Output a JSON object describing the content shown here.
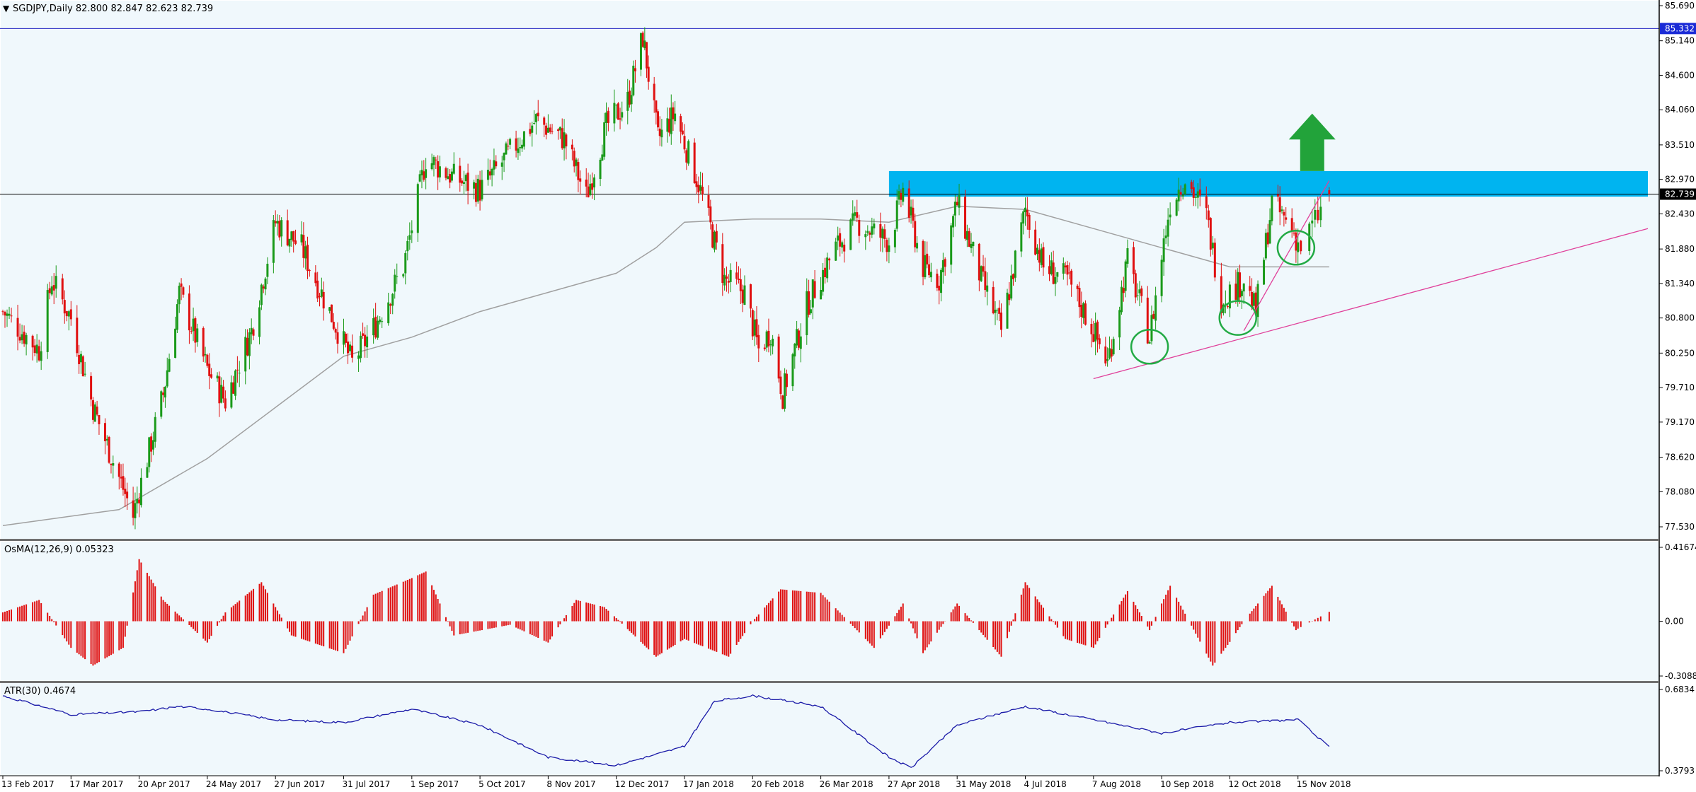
{
  "colors": {
    "background": "#f0f8fc",
    "bull_candle": "#1a9a1a",
    "bear_candle": "#e01010",
    "osma_bar": "#e01010",
    "atr_line": "#1a1aa8",
    "ma_line": "#a0a0a0",
    "resistance_line": "#2020c0",
    "price_line": "#000000",
    "zone": "#00b4f0",
    "arrow": "#22a33a",
    "trendline": "#e0409a",
    "circle": "#22aa44",
    "axis_text": "#000000",
    "tag_blue": "#1a2bd6",
    "tag_black": "#000000"
  },
  "main_panel": {
    "header_arrow": "▼",
    "header": "SGDJPY,Daily  82.800 82.847 82.623 82.739",
    "price_ticks": [
      "85.690",
      "85.140",
      "84.600",
      "84.060",
      "83.510",
      "82.970",
      "82.430",
      "81.880",
      "81.340",
      "80.800",
      "80.250",
      "79.710",
      "79.170",
      "78.620",
      "78.080",
      "77.530"
    ],
    "resistance_tag": "85.332",
    "last_price_tag": "82.739"
  },
  "osma_panel": {
    "label": "OsMA(12,26,9) 0.05323",
    "ticks": [
      "0.41674",
      "0.00",
      "-0.30886"
    ]
  },
  "atr_panel": {
    "label": "ATR(30) 0.4674",
    "ticks": [
      "0.6834",
      "0.3793"
    ]
  },
  "x_labels": [
    "13 Feb 2017",
    "17 Mar 2017",
    "20 Apr 2017",
    "24 May 2017",
    "27 Jun 2017",
    "31 Jul 2017",
    "1 Sep 2017",
    "5 Oct 2017",
    "8 Nov 2017",
    "12 Dec 2017",
    "17 Jan 2018",
    "20 Feb 2018",
    "26 Mar 2018",
    "27 Apr 2018",
    "31 May 2018",
    "4 Jul 2018",
    "7 Aug 2018",
    "10 Sep 2018",
    "12 Oct 2018",
    "15 Nov 2018"
  ],
  "chart_data": [
    {
      "type": "candlestick",
      "symbol": "SGDJPY",
      "timeframe": "Daily",
      "ohlc_last": {
        "open": 82.8,
        "high": 82.847,
        "low": 82.623,
        "close": 82.739
      },
      "ylim": [
        77.45,
        85.75
      ],
      "x_range": [
        "13 Feb 2017",
        "26 Nov 2018"
      ],
      "close_path": [
        {
          "date": "13 Feb 2017",
          "close": 80.9
        },
        {
          "date": "2 Mar 2017",
          "close": 80.3
        },
        {
          "date": "8 Mar 2017",
          "close": 81.4
        },
        {
          "date": "17 Mar 2017",
          "close": 80.8
        },
        {
          "date": "28 Mar 2017",
          "close": 79.4
        },
        {
          "date": "10 Apr 2017",
          "close": 78.3
        },
        {
          "date": "17 Apr 2017",
          "close": 77.7
        },
        {
          "date": "20 Apr 2017",
          "close": 78.1
        },
        {
          "date": "2 May 2017",
          "close": 79.6
        },
        {
          "date": "10 May 2017",
          "close": 81.2
        },
        {
          "date": "24 May 2017",
          "close": 80.0
        },
        {
          "date": "2 Jun 2017",
          "close": 79.5
        },
        {
          "date": "15 Jun 2017",
          "close": 80.6
        },
        {
          "date": "27 Jun 2017",
          "close": 82.3
        },
        {
          "date": "10 Jul 2017",
          "close": 81.9
        },
        {
          "date": "24 Jul 2017",
          "close": 80.9
        },
        {
          "date": "4 Aug 2017",
          "close": 80.1
        },
        {
          "date": "15 Aug 2017",
          "close": 80.7
        },
        {
          "date": "28 Aug 2017",
          "close": 81.6
        },
        {
          "date": "8 Sep 2017",
          "close": 83.3
        },
        {
          "date": "22 Sep 2017",
          "close": 83.0
        },
        {
          "date": "5 Oct 2017",
          "close": 82.8
        },
        {
          "date": "20 Oct 2017",
          "close": 83.4
        },
        {
          "date": "2 Nov 2017",
          "close": 83.9
        },
        {
          "date": "16 Nov 2017",
          "close": 83.6
        },
        {
          "date": "27 Nov 2017",
          "close": 82.7
        },
        {
          "date": "7 Dec 2017",
          "close": 83.8
        },
        {
          "date": "18 Dec 2017",
          "close": 84.2
        },
        {
          "date": "26 Dec 2017",
          "close": 85.2
        },
        {
          "date": "3 Jan 2018",
          "close": 83.6
        },
        {
          "date": "12 Jan 2018",
          "close": 84.0
        },
        {
          "date": "24 Jan 2018",
          "close": 82.9
        },
        {
          "date": "6 Feb 2018",
          "close": 81.4
        },
        {
          "date": "16 Feb 2018",
          "close": 81.2
        },
        {
          "date": "23 Feb 2018",
          "close": 80.3
        },
        {
          "date": "1 Mar 2018",
          "close": 80.6
        },
        {
          "date": "7 Mar 2018",
          "close": 79.6
        },
        {
          "date": "19 Mar 2018",
          "close": 81.0
        },
        {
          "date": "2 Apr 2018",
          "close": 81.9
        },
        {
          "date": "12 Apr 2018",
          "close": 82.3
        },
        {
          "date": "27 Apr 2018",
          "close": 82.0
        },
        {
          "date": "4 May 2018",
          "close": 82.8
        },
        {
          "date": "14 May 2018",
          "close": 81.6
        },
        {
          "date": "22 May 2018",
          "close": 81.4
        },
        {
          "date": "31 May 2018",
          "close": 82.6
        },
        {
          "date": "12 Jun 2018",
          "close": 81.4
        },
        {
          "date": "22 Jun 2018",
          "close": 80.6
        },
        {
          "date": "4 Jul 2018",
          "close": 82.5
        },
        {
          "date": "13 Jul 2018",
          "close": 81.6
        },
        {
          "date": "25 Jul 2018",
          "close": 81.4
        },
        {
          "date": "7 Aug 2018",
          "close": 80.6
        },
        {
          "date": "14 Aug 2018",
          "close": 80.1
        },
        {
          "date": "24 Aug 2018",
          "close": 81.7
        },
        {
          "date": "4 Sep 2018",
          "close": 80.5
        },
        {
          "date": "14 Sep 2018",
          "close": 82.6
        },
        {
          "date": "21 Sep 2018",
          "close": 83.0
        },
        {
          "date": "1 Oct 2018",
          "close": 82.4
        },
        {
          "date": "8 Oct 2018",
          "close": 81.1
        },
        {
          "date": "19 Oct 2018",
          "close": 81.4
        },
        {
          "date": "25 Oct 2018",
          "close": 80.9
        },
        {
          "date": "2 Nov 2018",
          "close": 82.6
        },
        {
          "date": "12 Nov 2018",
          "close": 82.2
        },
        {
          "date": "16 Nov 2018",
          "close": 81.9
        },
        {
          "date": "26 Nov 2018",
          "close": 82.739
        }
      ],
      "moving_average_path": [
        {
          "date": "13 Feb 2017",
          "value": 77.55
        },
        {
          "date": "10 Apr 2017",
          "value": 77.8
        },
        {
          "date": "24 May 2017",
          "value": 78.6
        },
        {
          "date": "27 Jun 2017",
          "value": 79.4
        },
        {
          "date": "31 Jul 2017",
          "value": 80.2
        },
        {
          "date": "1 Sep 2017",
          "value": 80.5
        },
        {
          "date": "5 Oct 2017",
          "value": 80.9
        },
        {
          "date": "8 Nov 2017",
          "value": 81.2
        },
        {
          "date": "12 Dec 2017",
          "value": 81.5
        },
        {
          "date": "2 Jan 2018",
          "value": 81.9
        },
        {
          "date": "17 Jan 2018",
          "value": 82.3
        },
        {
          "date": "20 Feb 2018",
          "value": 82.35
        },
        {
          "date": "26 Mar 2018",
          "value": 82.35
        },
        {
          "date": "27 Apr 2018",
          "value": 82.3
        },
        {
          "date": "31 May 2018",
          "value": 82.55
        },
        {
          "date": "4 Jul 2018",
          "value": 82.5
        },
        {
          "date": "7 Aug 2018",
          "value": 82.2
        },
        {
          "date": "10 Sep 2018",
          "value": 81.9
        },
        {
          "date": "12 Oct 2018",
          "value": 81.6
        },
        {
          "date": "26 Nov 2018",
          "value": 81.6
        }
      ],
      "horizontal_lines": [
        {
          "name": "resistance",
          "value": 85.332
        },
        {
          "name": "last_price",
          "value": 82.739
        }
      ],
      "zone": {
        "from_date": "27 Apr 2018",
        "to_date": "after 26 Nov 2018",
        "low": 82.7,
        "high": 83.1
      },
      "trendlines": [
        {
          "from": {
            "date": "7 Aug 2018",
            "value": 79.85
          },
          "to": {
            "date": "after 26 Nov 2018",
            "value": 82.2
          }
        },
        {
          "from": {
            "date": "19 Oct 2018",
            "value": 80.6
          },
          "to": {
            "date": "26 Nov 2018",
            "value": 82.95
          }
        }
      ],
      "circled_lows": [
        {
          "date": "4 Sep 2018",
          "value": 80.35
        },
        {
          "date": "16 Oct 2018",
          "value": 80.8
        },
        {
          "date": "14 Nov 2018",
          "value": 81.9
        }
      ],
      "arrow": {
        "direction": "up",
        "date": "20 Nov 2018",
        "from_value": 83.1,
        "to_value": 84.0
      }
    },
    {
      "type": "bar",
      "name": "OsMA(12,26,9)",
      "last_value": 0.05323,
      "ylim": [
        -0.30886,
        0.41674
      ],
      "path": [
        {
          "date": "13 Feb 2017",
          "value": 0.05
        },
        {
          "date": "2 Mar 2017",
          "value": 0.12
        },
        {
          "date": "17 Mar 2017",
          "value": -0.15
        },
        {
          "date": "28 Mar 2017",
          "value": -0.25
        },
        {
          "date": "12 Apr 2017",
          "value": -0.15
        },
        {
          "date": "20 Apr 2017",
          "value": 0.35
        },
        {
          "date": "2 May 2017",
          "value": 0.12
        },
        {
          "date": "24 May 2017",
          "value": -0.12
        },
        {
          "date": "2 Jun 2017",
          "value": 0.05
        },
        {
          "date": "20 Jun 2017",
          "value": 0.22
        },
        {
          "date": "5 Jul 2017",
          "value": -0.08
        },
        {
          "date": "31 Jul 2017",
          "value": -0.18
        },
        {
          "date": "14 Aug 2017",
          "value": 0.15
        },
        {
          "date": "8 Sep 2017",
          "value": 0.28
        },
        {
          "date": "22 Sep 2017",
          "value": -0.08
        },
        {
          "date": "20 Oct 2017",
          "value": -0.02
        },
        {
          "date": "8 Nov 2017",
          "value": -0.12
        },
        {
          "date": "22 Nov 2017",
          "value": 0.12
        },
        {
          "date": "6 Dec 2017",
          "value": 0.08
        },
        {
          "date": "2 Jan 2018",
          "value": -0.2
        },
        {
          "date": "17 Jan 2018",
          "value": -0.1
        },
        {
          "date": "8 Feb 2018",
          "value": -0.2
        },
        {
          "date": "20 Feb 2018",
          "value": 0.0
        },
        {
          "date": "6 Mar 2018",
          "value": 0.18
        },
        {
          "date": "26 Mar 2018",
          "value": 0.16
        },
        {
          "date": "20 Apr 2018",
          "value": -0.15
        },
        {
          "date": "4 May 2018",
          "value": 0.1
        },
        {
          "date": "14 May 2018",
          "value": -0.18
        },
        {
          "date": "31 May 2018",
          "value": 0.1
        },
        {
          "date": "22 Jun 2018",
          "value": -0.2
        },
        {
          "date": "4 Jul 2018",
          "value": 0.22
        },
        {
          "date": "24 Jul 2018",
          "value": -0.1
        },
        {
          "date": "7 Aug 2018",
          "value": -0.15
        },
        {
          "date": "24 Aug 2018",
          "value": 0.17
        },
        {
          "date": "4 Sep 2018",
          "value": -0.05
        },
        {
          "date": "14 Sep 2018",
          "value": 0.2
        },
        {
          "date": "4 Oct 2018",
          "value": -0.25
        },
        {
          "date": "19 Oct 2018",
          "value": 0.0
        },
        {
          "date": "2 Nov 2018",
          "value": 0.2
        },
        {
          "date": "14 Nov 2018",
          "value": -0.05
        },
        {
          "date": "26 Nov 2018",
          "value": 0.05323
        }
      ]
    },
    {
      "type": "line",
      "name": "ATR(30)",
      "last_value": 0.4674,
      "ylim": [
        0.3793,
        0.6834
      ],
      "path": [
        {
          "date": "13 Feb 2017",
          "value": 0.66
        },
        {
          "date": "17 Mar 2017",
          "value": 0.59
        },
        {
          "date": "20 Apr 2017",
          "value": 0.6
        },
        {
          "date": "10 May 2017",
          "value": 0.62
        },
        {
          "date": "24 May 2017",
          "value": 0.61
        },
        {
          "date": "27 Jun 2017",
          "value": 0.57
        },
        {
          "date": "31 Jul 2017",
          "value": 0.56
        },
        {
          "date": "1 Sep 2017",
          "value": 0.61
        },
        {
          "date": "5 Oct 2017",
          "value": 0.55
        },
        {
          "date": "8 Nov 2017",
          "value": 0.43
        },
        {
          "date": "12 Dec 2017",
          "value": 0.4
        },
        {
          "date": "17 Jan 2018",
          "value": 0.47
        },
        {
          "date": "1 Feb 2018",
          "value": 0.64
        },
        {
          "date": "20 Feb 2018",
          "value": 0.66
        },
        {
          "date": "26 Mar 2018",
          "value": 0.62
        },
        {
          "date": "27 Apr 2018",
          "value": 0.43
        },
        {
          "date": "8 May 2018",
          "value": 0.39
        },
        {
          "date": "31 May 2018",
          "value": 0.55
        },
        {
          "date": "4 Jul 2018",
          "value": 0.62
        },
        {
          "date": "7 Aug 2018",
          "value": 0.57
        },
        {
          "date": "10 Sep 2018",
          "value": 0.52
        },
        {
          "date": "12 Oct 2018",
          "value": 0.56
        },
        {
          "date": "15 Nov 2018",
          "value": 0.57
        },
        {
          "date": "26 Nov 2018",
          "value": 0.4674
        }
      ]
    }
  ]
}
